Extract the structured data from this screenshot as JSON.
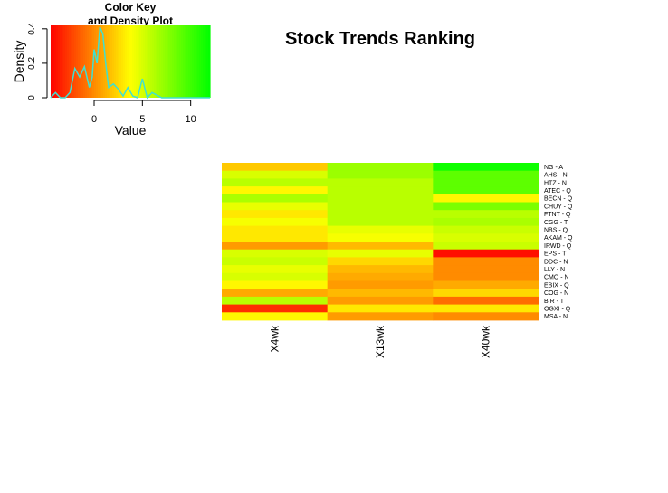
{
  "chart_data": [
    {
      "type": "heatmap",
      "title": "Stock Trends Ranking",
      "columns": [
        "X4wk",
        "X13wk",
        "X40wk"
      ],
      "rows": [
        "NG - A",
        "AHS - N",
        "HTZ - N",
        "ATEC - Q",
        "BECN - Q",
        "CHUY - Q",
        "FTNT - Q",
        "CGG - T",
        "NBS - Q",
        "AKAM - Q",
        "IRWD - Q",
        "EPS - T",
        "DDC - N",
        "LLY - N",
        "CMO - N",
        "EBIX - Q",
        "COG - N",
        "BIR - T",
        "OGXI - Q",
        "MSA - N"
      ],
      "values": [
        [
          2.0,
          7.0,
          11.5
        ],
        [
          5.0,
          7.0,
          9.0
        ],
        [
          6.0,
          6.0,
          9.0
        ],
        [
          3.5,
          6.0,
          9.0
        ],
        [
          6.5,
          6.0,
          3.5
        ],
        [
          4.5,
          6.0,
          8.0
        ],
        [
          3.0,
          6.0,
          6.0
        ],
        [
          4.0,
          6.0,
          6.5
        ],
        [
          3.0,
          4.5,
          5.5
        ],
        [
          3.0,
          4.0,
          5.0
        ],
        [
          0.5,
          1.5,
          5.5
        ],
        [
          5.0,
          4.5,
          -4.0
        ],
        [
          5.5,
          2.5,
          0.0
        ],
        [
          4.5,
          1.5,
          0.0
        ],
        [
          5.0,
          1.0,
          0.0
        ],
        [
          3.5,
          0.5,
          1.0
        ],
        [
          1.0,
          1.5,
          2.5
        ],
        [
          6.0,
          0.5,
          -1.0
        ],
        [
          -3.0,
          3.0,
          3.0
        ],
        [
          3.5,
          0.5,
          0.0
        ]
      ]
    },
    {
      "type": "line",
      "title": "Color Key\nand Density Plot",
      "xlabel": "Value",
      "ylabel": "Density",
      "xlim": [
        -4.5,
        12
      ],
      "ylim": [
        0,
        0.42
      ],
      "x_ticks": [
        0,
        5,
        10
      ],
      "y_ticks": [
        0,
        0.2,
        0.4
      ],
      "x": [
        -4.5,
        -4.0,
        -3.5,
        -3.0,
        -2.5,
        -2.0,
        -1.5,
        -1.0,
        -0.5,
        -0.2,
        0.0,
        0.3,
        0.6,
        0.9,
        1.2,
        1.5,
        2.0,
        2.5,
        3.0,
        3.5,
        4.0,
        4.5,
        5.0,
        5.5,
        6.0,
        7.0,
        8.0,
        10.0,
        12.0
      ],
      "y": [
        0.0,
        0.03,
        0.0,
        0.0,
        0.03,
        0.17,
        0.12,
        0.18,
        0.06,
        0.12,
        0.28,
        0.2,
        0.41,
        0.37,
        0.2,
        0.06,
        0.08,
        0.05,
        0.01,
        0.06,
        0.01,
        0.0,
        0.11,
        0.0,
        0.03,
        0.0,
        0.0,
        0.0,
        0.0
      ],
      "series_color": "#40e0d0",
      "key_colors": [
        "#ff0000",
        "#ffff00",
        "#00ff00"
      ]
    }
  ]
}
